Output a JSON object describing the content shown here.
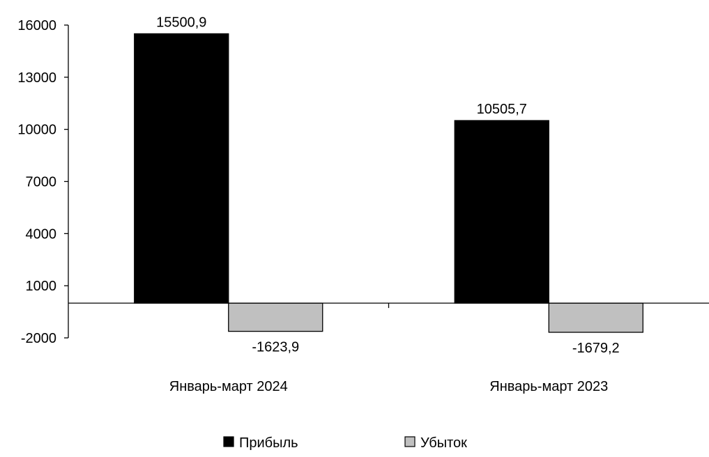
{
  "chart_data": {
    "type": "bar",
    "categories": [
      "Январь-март 2024",
      "Январь-март 2023"
    ],
    "series": [
      {
        "name": "Прибыль",
        "values": [
          15500.9,
          10505.7
        ],
        "labels": [
          "15500,9",
          "10505,7"
        ],
        "color": "#000000"
      },
      {
        "name": "Убыток",
        "values": [
          -1623.9,
          -1679.2
        ],
        "labels": [
          "-1623,9",
          "-1679,2"
        ],
        "color": "#c0c0c0"
      }
    ],
    "yticks": [
      16000,
      13000,
      10000,
      7000,
      4000,
      1000,
      -2000
    ],
    "ylim": [
      -2000,
      16000
    ],
    "title": "",
    "xlabel": "",
    "ylabel": "",
    "grid": false,
    "legend_position": "bottom"
  }
}
